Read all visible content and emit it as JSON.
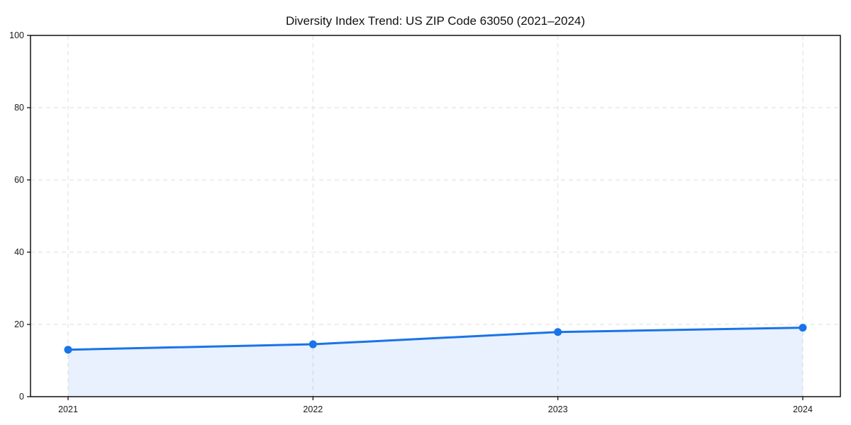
{
  "chart_data": {
    "type": "area",
    "title": "Diversity Index Trend: US ZIP Code 63050 (2021–2024)",
    "categories": [
      "2021",
      "2022",
      "2023",
      "2024"
    ],
    "series": [
      {
        "name": "Diversity Index",
        "values": [
          13.0,
          14.5,
          17.9,
          19.1
        ]
      }
    ],
    "xlabel": "",
    "ylabel": "",
    "ylim": [
      0,
      100
    ],
    "yticks": [
      0,
      20,
      40,
      60,
      80,
      100
    ],
    "grid": true,
    "legend": false,
    "colors": {
      "line": "#1a73e8",
      "fill": "#1a73e8",
      "fill_opacity": "0.10",
      "grid": "#dedede",
      "axis": "#000000",
      "tick_text": "#1a1a1a",
      "background": "#ffffff"
    }
  }
}
